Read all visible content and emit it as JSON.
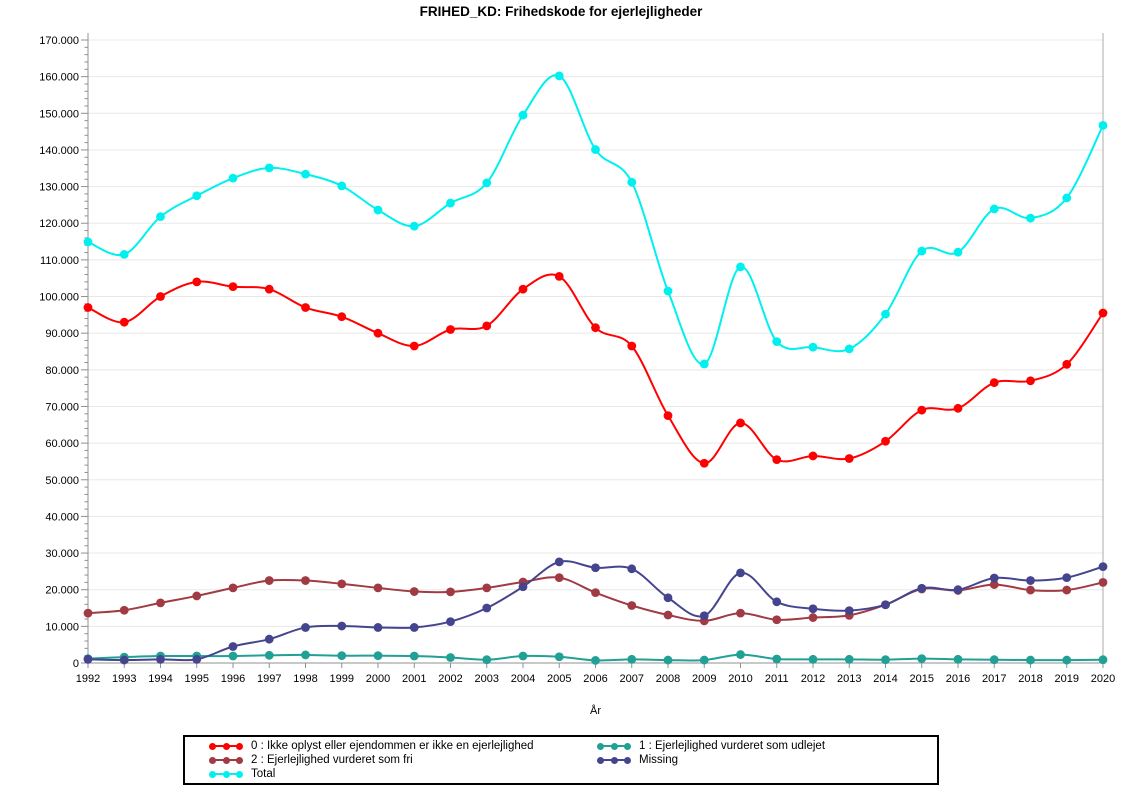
{
  "title": "FRIHED_KD: Frihedskode for ejerlejligheder",
  "chart_data": {
    "type": "line",
    "x": [
      1992,
      1993,
      1994,
      1995,
      1996,
      1997,
      1998,
      1999,
      2000,
      2001,
      2002,
      2003,
      2004,
      2005,
      2006,
      2007,
      2008,
      2009,
      2010,
      2011,
      2012,
      2013,
      2014,
      2015,
      2016,
      2017,
      2018,
      2019,
      2020
    ],
    "xlabel": "År",
    "ylabel": "",
    "ylim": [
      0,
      170000
    ],
    "ytick_step": 10000,
    "ytick_labels": [
      "0",
      "10.000",
      "20.000",
      "30.000",
      "40.000",
      "50.000",
      "60.000",
      "70.000",
      "80.000",
      "90.000",
      "100.000",
      "110.000",
      "120.000",
      "130.000",
      "140.000",
      "150.000",
      "160.000",
      "170.000"
    ],
    "grid": true,
    "legend_position": "bottom",
    "series": [
      {
        "name": "0 : Ikke oplyst eller ejendommen er ikke en ejerlejlighed",
        "color": "#FF0000",
        "values": [
          97000,
          93000,
          100000,
          104000,
          102700,
          102000,
          97000,
          94500,
          90000,
          86500,
          91000,
          92000,
          102000,
          105500,
          91500,
          86500,
          67500,
          54500,
          65500,
          55500,
          56500,
          55800,
          60500,
          69000,
          69500,
          76500,
          77000,
          81500,
          95500
        ]
      },
      {
        "name": "1 : Ejerlejlighed vurderet som udlejet",
        "color": "#21A095",
        "values": [
          1200,
          1600,
          1900,
          1900,
          1900,
          2100,
          2200,
          2000,
          2000,
          1900,
          1500,
          900,
          1900,
          1700,
          700,
          1000,
          800,
          800,
          2300,
          1100,
          1000,
          1000,
          900,
          1200,
          1000,
          900,
          800,
          800,
          900
        ]
      },
      {
        "name": "2 : Ejerlejlighed vurderet som fri",
        "color": "#A03B44",
        "values": [
          13600,
          14400,
          16400,
          18300,
          20500,
          22500,
          22500,
          21600,
          20500,
          19500,
          19400,
          20500,
          22100,
          23300,
          19200,
          15700,
          13100,
          11500,
          13600,
          11800,
          12400,
          13000,
          15900,
          20200,
          19800,
          21400,
          19900,
          19900,
          22000
        ]
      },
      {
        "name": "Missing",
        "color": "#45458F",
        "values": [
          1000,
          800,
          1000,
          1000,
          4500,
          6500,
          9700,
          10100,
          9700,
          9700,
          11300,
          15000,
          20800,
          27600,
          26000,
          25700,
          17800,
          12900,
          24600,
          16700,
          14800,
          14300,
          15900,
          20400,
          20000,
          23200,
          22500,
          23300,
          26300
        ]
      },
      {
        "name": "Total",
        "color": "#00F0F0",
        "values": [
          114900,
          111500,
          121800,
          127500,
          132300,
          135100,
          133400,
          130200,
          123600,
          119200,
          125500,
          131000,
          149500,
          160200,
          140100,
          131200,
          101500,
          81600,
          108100,
          87700,
          86200,
          85700,
          95200,
          112400,
          112100,
          123900,
          121400,
          126900,
          146700
        ]
      }
    ]
  }
}
